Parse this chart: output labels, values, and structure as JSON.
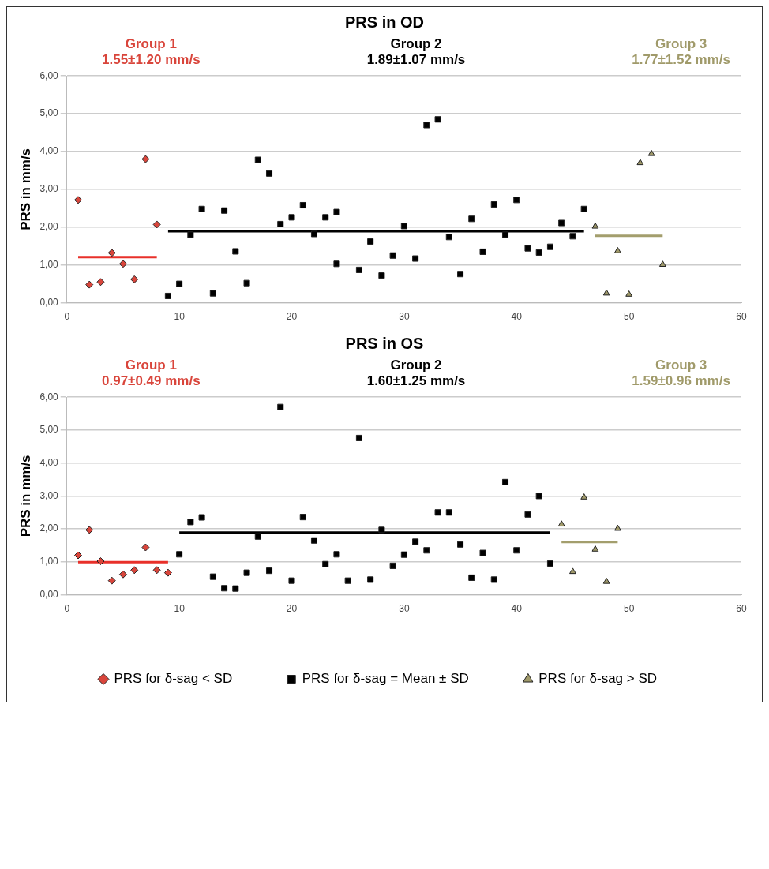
{
  "chart_data": [
    {
      "type": "scatter",
      "title": "PRS in OD",
      "ylabel": "PRS in mm/s",
      "annotations": [
        "Group 1\n1.55±1.20 mm/s",
        "Group 2\n1.89±1.07 mm/s",
        "Group 3\n1.77±1.52 mm/s"
      ],
      "xlim": [
        0,
        60
      ],
      "xticks": [
        0,
        10,
        20,
        30,
        40,
        50,
        60
      ],
      "ylim": [
        0,
        6
      ],
      "yticks": [
        {
          "value": 0,
          "label": "0,00"
        },
        {
          "value": 1,
          "label": "1,00"
        },
        {
          "value": 2,
          "label": "2,00"
        },
        {
          "value": 3,
          "label": "3,00"
        },
        {
          "value": 4,
          "label": "4,00"
        },
        {
          "value": 5,
          "label": "5,00"
        },
        {
          "value": 6,
          "label": "6,00"
        }
      ],
      "grid": "y",
      "legend": false,
      "series": [
        {
          "type": "scatter",
          "marker": "diamond",
          "color": "#d9453b",
          "x": [
            1,
            2,
            3,
            4,
            5,
            6,
            7,
            8
          ],
          "values": [
            2.72,
            0.48,
            0.55,
            1.32,
            1.03,
            0.62,
            3.8,
            2.07
          ]
        },
        {
          "type": "scatter",
          "marker": "square",
          "color": "#000000",
          "x": [
            9,
            10,
            11,
            12,
            13,
            14,
            15,
            16,
            17,
            18,
            19,
            20,
            21,
            22,
            23,
            24,
            24,
            26,
            27,
            28,
            29,
            30,
            31,
            32,
            33,
            34,
            35,
            36,
            37,
            38,
            39,
            40,
            41,
            42,
            43,
            44,
            45,
            46
          ],
          "values": [
            0.18,
            0.5,
            1.8,
            2.48,
            0.25,
            2.44,
            1.36,
            0.52,
            3.78,
            3.42,
            2.08,
            2.26,
            2.58,
            1.82,
            2.26,
            2.4,
            1.03,
            0.87,
            1.62,
            0.72,
            1.25,
            2.03,
            1.17,
            4.7,
            4.85,
            1.74,
            0.76,
            2.22,
            1.35,
            2.6,
            1.8,
            2.72,
            1.44,
            1.33,
            1.48,
            2.11,
            1.76,
            2.48
          ]
        },
        {
          "type": "scatter",
          "marker": "triangle",
          "color": "#a09a6a",
          "x": [
            47,
            48,
            49,
            50,
            51,
            52,
            53
          ],
          "values": [
            2.02,
            0.25,
            1.37,
            0.22,
            3.7,
            3.94,
            1.01
          ]
        },
        {
          "type": "line",
          "marker": "none",
          "color": "#e8302a",
          "x": [
            1,
            8
          ],
          "values": [
            1.21,
            1.21
          ]
        },
        {
          "type": "line",
          "marker": "none",
          "color": "#000000",
          "x": [
            9,
            46
          ],
          "values": [
            1.89,
            1.89
          ]
        },
        {
          "type": "line",
          "marker": "none",
          "color": "#a39e6d",
          "x": [
            47,
            53
          ],
          "values": [
            1.77,
            1.77
          ]
        }
      ]
    },
    {
      "type": "scatter",
      "title": "PRS in OS",
      "ylabel": "PRS in mm/s",
      "annotations": [
        "Group 1\n0.97±0.49 mm/s",
        "Group 2\n1.60±1.25 mm/s",
        "Group 3\n1.59±0.96 mm/s"
      ],
      "xlim": [
        0,
        60
      ],
      "xticks": [
        0,
        10,
        20,
        30,
        40,
        50,
        60
      ],
      "ylim": [
        0,
        6
      ],
      "yticks": [
        {
          "value": 0,
          "label": "0,00"
        },
        {
          "value": 1,
          "label": "1,00"
        },
        {
          "value": 2,
          "label": "2,00"
        },
        {
          "value": 3,
          "label": "3,00"
        },
        {
          "value": 4,
          "label": "4,00"
        },
        {
          "value": 5,
          "label": "5,00"
        },
        {
          "value": 6,
          "label": "6,00"
        }
      ],
      "grid": "y",
      "legend": "bottom",
      "series": [
        {
          "type": "scatter",
          "name": "PRS for δ-sag < SD",
          "marker": "diamond",
          "color": "#d9453b",
          "x": [
            1,
            2,
            3,
            4,
            5,
            6,
            7,
            8,
            9
          ],
          "values": [
            1.2,
            1.97,
            1.02,
            0.43,
            0.62,
            0.75,
            1.44,
            0.75,
            0.67
          ]
        },
        {
          "type": "scatter",
          "name": "PRS for δ-sag = Mean ± SD",
          "marker": "square",
          "color": "#000000",
          "x": [
            10,
            11,
            12,
            13,
            14,
            15,
            16,
            17,
            18,
            19,
            20,
            21,
            22,
            23,
            24,
            25,
            26,
            27,
            28,
            29,
            30,
            31,
            32,
            33,
            34,
            35,
            36,
            37,
            38,
            39,
            40,
            41,
            42,
            43
          ],
          "values": [
            1.23,
            2.21,
            2.35,
            0.55,
            0.2,
            0.19,
            0.67,
            1.77,
            0.73,
            5.7,
            0.43,
            2.36,
            1.65,
            0.93,
            1.23,
            0.43,
            4.76,
            0.46,
            1.97,
            0.88,
            1.22,
            1.61,
            1.35,
            2.5,
            2.5,
            1.53,
            0.52,
            1.27,
            0.46,
            3.42,
            1.35,
            2.44,
            3.0,
            0.95
          ]
        },
        {
          "type": "scatter",
          "name": "PRS for δ-sag > SD",
          "marker": "triangle",
          "color": "#a09a6a",
          "x": [
            44,
            45,
            46,
            47,
            48,
            49
          ],
          "values": [
            2.14,
            0.7,
            2.96,
            1.38,
            0.4,
            2.01
          ]
        },
        {
          "type": "line",
          "marker": "none",
          "color": "#e8302a",
          "x": [
            1,
            9
          ],
          "values": [
            0.99,
            0.99
          ]
        },
        {
          "type": "line",
          "marker": "none",
          "color": "#000000",
          "x": [
            10,
            43
          ],
          "values": [
            1.89,
            1.89
          ]
        },
        {
          "type": "line",
          "marker": "none",
          "color": "#a39e6d",
          "x": [
            44,
            49
          ],
          "values": [
            1.6,
            1.6
          ]
        }
      ]
    }
  ]
}
